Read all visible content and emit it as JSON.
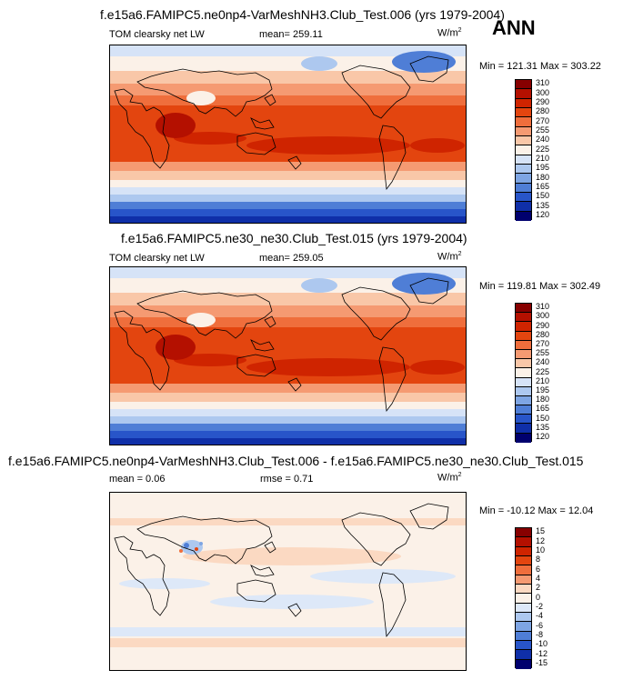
{
  "season": "ANN",
  "panels": [
    {
      "title": "f.e15a6.FAMIPC5.ne0np4-VarMeshNH3.Club_Test.006 (yrs 1979-2004)",
      "left_label": "TOM clearsky net LW",
      "center_label": "mean= 259.11",
      "units": "W/m",
      "units_sup": "2",
      "minmax": "Min = 121.31 Max = 303.22",
      "colorbar_labels": [
        "310",
        "300",
        "290",
        "280",
        "270",
        "255",
        "240",
        "225",
        "210",
        "195",
        "180",
        "165",
        "150",
        "135",
        "120"
      ]
    },
    {
      "title": "f.e15a6.FAMIPC5.ne30_ne30.Club_Test.015 (yrs 1979-2004)",
      "left_label": "TOM clearsky net LW",
      "center_label": "mean= 259.05",
      "units": "W/m",
      "units_sup": "2",
      "minmax": "Min = 119.81 Max = 302.49",
      "colorbar_labels": [
        "310",
        "300",
        "290",
        "280",
        "270",
        "255",
        "240",
        "225",
        "210",
        "195",
        "180",
        "165",
        "150",
        "135",
        "120"
      ]
    },
    {
      "title": "f.e15a6.FAMIPC5.ne0np4-VarMeshNH3.Club_Test.006 - f.e15a6.FAMIPC5.ne30_ne30.Club_Test.015",
      "left_label": "mean =  0.06",
      "center_label": "rmse =  0.71",
      "units": "W/m",
      "units_sup": "2",
      "minmax": "Min = -10.12 Max =  12.04",
      "colorbar_labels": [
        "15",
        "12",
        "10",
        "8",
        "6",
        "4",
        "2",
        "0",
        "-2",
        "-4",
        "-6",
        "-8",
        "-10",
        "-12",
        "-15"
      ]
    }
  ],
  "colors": {
    "abs_scale": [
      "#870000",
      "#b41000",
      "#cf2400",
      "#e3450f",
      "#ef6e3c",
      "#f59a72",
      "#f9c7a8",
      "#fbf1e8",
      "#d6e3f7",
      "#adc8ef",
      "#7ea5e3",
      "#4f7ed6",
      "#2855c9",
      "#0f2fa8",
      "#00006e"
    ],
    "diff_scale": [
      "#870000",
      "#b41000",
      "#cf2400",
      "#e3450f",
      "#ef6e3c",
      "#f59a72",
      "#fbd9c2",
      "#fbf1e8",
      "#dde8f8",
      "#adc8ef",
      "#7ea5e3",
      "#4f7ed6",
      "#2855c9",
      "#0f2fa8",
      "#00006e"
    ],
    "coastline": "#000000"
  }
}
